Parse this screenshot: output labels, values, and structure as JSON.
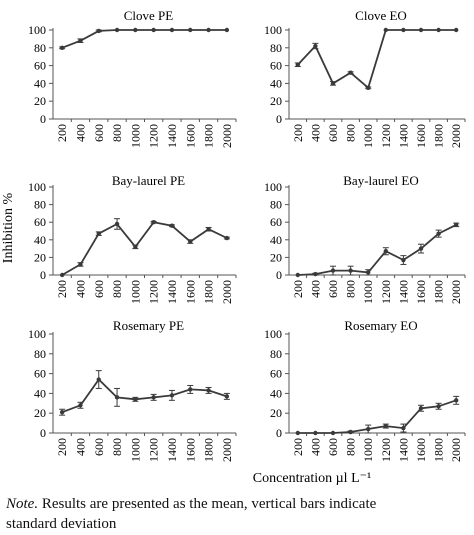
{
  "figure": {
    "y_axis_label": "Inhibition %",
    "x_axis_label": "Concentration µl L⁻¹",
    "note_lead": "Note.",
    "note_line1": " Results are presented as the mean, vertical bars indicate",
    "note_line2": "standard deviation",
    "line_color": "#3a3a3a"
  },
  "chart_data": [
    {
      "type": "line",
      "title": "Clove PE",
      "x": [
        200,
        400,
        600,
        800,
        1000,
        1200,
        1400,
        1600,
        1800,
        2000
      ],
      "series": [
        {
          "values": [
            80,
            88,
            99,
            100,
            100,
            100,
            100,
            100,
            100,
            100
          ],
          "errors": [
            1,
            2,
            1,
            0,
            0,
            0,
            0,
            0,
            0,
            0
          ]
        }
      ],
      "ylim": [
        0,
        100
      ],
      "yticks": [
        0,
        20,
        40,
        60,
        80,
        100
      ],
      "grid": false
    },
    {
      "type": "line",
      "title": "Clove EO",
      "x": [
        200,
        400,
        600,
        800,
        1000,
        1200,
        1400,
        1600,
        1800,
        2000
      ],
      "series": [
        {
          "values": [
            61,
            82,
            40,
            52,
            35,
            100,
            100,
            100,
            100,
            100
          ],
          "errors": [
            2,
            3,
            2,
            1,
            1,
            0,
            0,
            0,
            0,
            0
          ]
        }
      ],
      "ylim": [
        0,
        100
      ],
      "yticks": [
        0,
        20,
        40,
        60,
        80,
        100
      ],
      "grid": false
    },
    {
      "type": "line",
      "title": "Bay-laurel PE",
      "x": [
        200,
        400,
        600,
        800,
        1000,
        1200,
        1400,
        1600,
        1800,
        2000
      ],
      "series": [
        {
          "values": [
            0,
            12,
            47,
            58,
            32,
            60,
            56,
            38,
            52,
            42
          ],
          "errors": [
            0,
            2,
            2,
            6,
            2,
            1,
            1,
            2,
            2,
            1
          ]
        }
      ],
      "ylim": [
        0,
        100
      ],
      "yticks": [
        0,
        20,
        40,
        60,
        80,
        100
      ],
      "grid": false
    },
    {
      "type": "line",
      "title": "Bay-laurel EO",
      "x": [
        200,
        400,
        600,
        800,
        1000,
        1200,
        1400,
        1600,
        1800,
        2000
      ],
      "series": [
        {
          "values": [
            0,
            1,
            5,
            5,
            3,
            27,
            17,
            30,
            47,
            57
          ],
          "errors": [
            0,
            1,
            5,
            5,
            3,
            4,
            5,
            5,
            4,
            2
          ]
        }
      ],
      "ylim": [
        0,
        100
      ],
      "yticks": [
        0,
        20,
        40,
        60,
        80,
        100
      ],
      "grid": false
    },
    {
      "type": "line",
      "title": "Rosemary PE",
      "x": [
        200,
        400,
        600,
        800,
        1000,
        1200,
        1400,
        1600,
        1800,
        2000
      ],
      "series": [
        {
          "values": [
            21,
            28,
            54,
            36,
            34,
            36,
            38,
            44,
            43,
            37
          ],
          "errors": [
            3,
            3,
            9,
            9,
            2,
            3,
            5,
            4,
            3,
            3
          ]
        }
      ],
      "ylim": [
        0,
        100
      ],
      "yticks": [
        0,
        20,
        40,
        60,
        80,
        100
      ],
      "grid": false
    },
    {
      "type": "line",
      "title": "Rosemary EO",
      "x": [
        200,
        400,
        600,
        800,
        1000,
        1200,
        1400,
        1600,
        1800,
        2000
      ],
      "series": [
        {
          "values": [
            0,
            0,
            0,
            1,
            4,
            7,
            5,
            25,
            27,
            33
          ],
          "errors": [
            0,
            0,
            0,
            1,
            4,
            2,
            4,
            3,
            3,
            4
          ]
        }
      ],
      "ylim": [
        0,
        100
      ],
      "yticks": [
        0,
        20,
        40,
        60,
        80,
        100
      ],
      "grid": false
    }
  ]
}
